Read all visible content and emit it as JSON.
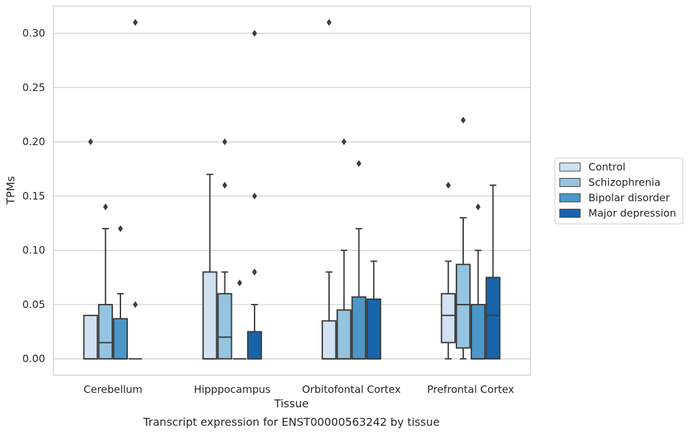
{
  "chart_data": {
    "type": "box",
    "caption": "Transcript expression for ENST00000563242 by tissue",
    "xlabel": "Tissue",
    "ylabel": "TPMs",
    "ylim": [
      -0.015,
      0.325
    ],
    "yticks": [
      "0.00",
      "0.05",
      "0.10",
      "0.15",
      "0.20",
      "0.25",
      "0.30"
    ],
    "ytick_values": [
      0,
      0.05,
      0.1,
      0.15,
      0.2,
      0.25,
      0.3
    ],
    "grid": true,
    "legend_position": "right",
    "categories": [
      "Cerebellum",
      "Hipppocampus",
      "Orbitofontal Cortex",
      "Prefrontal Cortex"
    ],
    "series": [
      {
        "name": "Control",
        "color": "#d0e1f2",
        "boxes": [
          {
            "q1": 0,
            "median": 0,
            "q3": 0.04,
            "whisker_low": 0,
            "whisker_high": 0.04,
            "outliers": [
              0.2
            ]
          },
          {
            "q1": 0,
            "median": 0,
            "q3": 0.08,
            "whisker_low": 0,
            "whisker_high": 0.17,
            "outliers": []
          },
          {
            "q1": 0,
            "median": 0,
            "q3": 0.035,
            "whisker_low": 0,
            "whisker_high": 0.08,
            "outliers": [
              0.31
            ]
          },
          {
            "q1": 0.015,
            "median": 0.04,
            "q3": 0.06,
            "whisker_low": 0,
            "whisker_high": 0.09,
            "outliers": [
              0.16
            ]
          }
        ]
      },
      {
        "name": "Schizophrenia",
        "color": "#94c4df",
        "boxes": [
          {
            "q1": 0,
            "median": 0.015,
            "q3": 0.05,
            "whisker_low": 0,
            "whisker_high": 0.12,
            "outliers": [
              0.14
            ]
          },
          {
            "q1": 0,
            "median": 0.02,
            "q3": 0.06,
            "whisker_low": 0,
            "whisker_high": 0.08,
            "outliers": [
              0.2,
              0.16
            ]
          },
          {
            "q1": 0,
            "median": 0,
            "q3": 0.045,
            "whisker_low": 0,
            "whisker_high": 0.1,
            "outliers": [
              0.2
            ]
          },
          {
            "q1": 0.01,
            "median": 0.05,
            "q3": 0.087,
            "whisker_low": 0,
            "whisker_high": 0.13,
            "outliers": [
              0.22
            ]
          }
        ]
      },
      {
        "name": "Bipolar disorder",
        "color": "#4a98c9",
        "boxes": [
          {
            "q1": 0,
            "median": 0,
            "q3": 0.037,
            "whisker_low": 0,
            "whisker_high": 0.06,
            "outliers": [
              0.12
            ]
          },
          {
            "q1": 0,
            "median": 0,
            "q3": 0,
            "whisker_low": 0,
            "whisker_high": 0,
            "outliers": [
              0.07
            ]
          },
          {
            "q1": 0,
            "median": 0,
            "q3": 0.057,
            "whisker_low": 0,
            "whisker_high": 0.12,
            "outliers": [
              0.18
            ]
          },
          {
            "q1": 0,
            "median": 0,
            "q3": 0.05,
            "whisker_low": 0,
            "whisker_high": 0.1,
            "outliers": [
              0.14
            ]
          }
        ]
      },
      {
        "name": "Major depression",
        "color": "#1764ab",
        "boxes": [
          {
            "q1": 0,
            "median": 0,
            "q3": 0,
            "whisker_low": 0,
            "whisker_high": 0,
            "outliers": [
              0.31,
              0.05
            ]
          },
          {
            "q1": 0,
            "median": 0,
            "q3": 0.025,
            "whisker_low": 0,
            "whisker_high": 0.05,
            "outliers": [
              0.3,
              0.15,
              0.08
            ]
          },
          {
            "q1": 0,
            "median": 0,
            "q3": 0.055,
            "whisker_low": 0,
            "whisker_high": 0.09,
            "outliers": []
          },
          {
            "q1": 0,
            "median": 0.04,
            "q3": 0.075,
            "whisker_low": 0,
            "whisker_high": 0.16,
            "outliers": []
          }
        ]
      }
    ]
  }
}
